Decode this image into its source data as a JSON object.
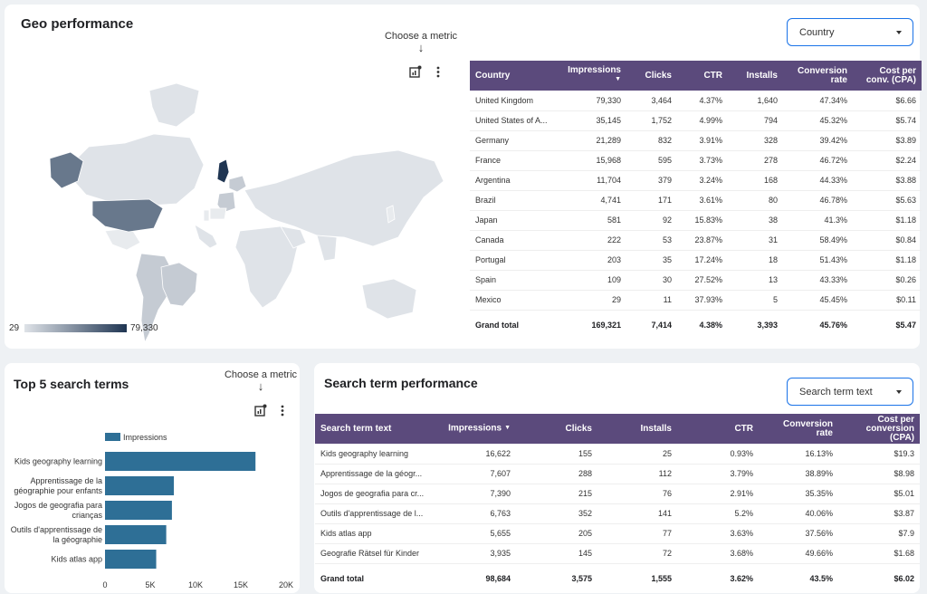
{
  "geo": {
    "title": "Geo performance",
    "choose_metric": "Choose a metric",
    "dropdown_label": "Country",
    "scale_min": "29",
    "scale_max": "79,330",
    "colors": {
      "header": "#5b4a7c",
      "accent": "#1a73e8",
      "map_dark": "#1f3552",
      "map_light": "#dfe3e8"
    },
    "table": {
      "headers": [
        "Country",
        "Impressions",
        "Clicks",
        "CTR",
        "Installs",
        "Conversion rate",
        "Cost per conv. (CPA)"
      ],
      "rows": [
        [
          "United Kingdom",
          "79,330",
          "3,464",
          "4.37%",
          "1,640",
          "47.34%",
          "$6.66"
        ],
        [
          "United States of A...",
          "35,145",
          "1,752",
          "4.99%",
          "794",
          "45.32%",
          "$5.74"
        ],
        [
          "Germany",
          "21,289",
          "832",
          "3.91%",
          "328",
          "39.42%",
          "$3.89"
        ],
        [
          "France",
          "15,968",
          "595",
          "3.73%",
          "278",
          "46.72%",
          "$2.24"
        ],
        [
          "Argentina",
          "11,704",
          "379",
          "3.24%",
          "168",
          "44.33%",
          "$3.88"
        ],
        [
          "Brazil",
          "4,741",
          "171",
          "3.61%",
          "80",
          "46.78%",
          "$5.63"
        ],
        [
          "Japan",
          "581",
          "92",
          "15.83%",
          "38",
          "41.3%",
          "$1.18"
        ],
        [
          "Canada",
          "222",
          "53",
          "23.87%",
          "31",
          "58.49%",
          "$0.84"
        ],
        [
          "Portugal",
          "203",
          "35",
          "17.24%",
          "18",
          "51.43%",
          "$1.18"
        ],
        [
          "Spain",
          "109",
          "30",
          "27.52%",
          "13",
          "43.33%",
          "$0.26"
        ],
        [
          "Mexico",
          "29",
          "11",
          "37.93%",
          "5",
          "45.45%",
          "$0.11"
        ]
      ],
      "total": [
        "Grand total",
        "169,321",
        "7,414",
        "4.38%",
        "3,393",
        "45.76%",
        "$5.47"
      ]
    }
  },
  "top5": {
    "title": "Top 5 search terms",
    "choose_metric": "Choose a metric",
    "chart_data": {
      "type": "bar",
      "orientation": "horizontal",
      "title": "Top 5 search terms",
      "legend": [
        "Impressions"
      ],
      "categories": [
        "Kids geography learning",
        "Apprentissage de la géographie pour enfants",
        "Jogos de geografia para crianças",
        "Outils d'apprentissage de la géographie",
        "Kids atlas app"
      ],
      "category_lines": [
        [
          "Kids geography learning"
        ],
        [
          "Apprentissage de la",
          "géographie pour enfants"
        ],
        [
          "Jogos de geografia para",
          "crianças"
        ],
        [
          "Outils d'apprentissage de",
          "la géographie"
        ],
        [
          "Kids atlas app"
        ]
      ],
      "series": [
        {
          "name": "Impressions",
          "values": [
            16622,
            7607,
            7390,
            6763,
            5655
          ]
        }
      ],
      "xlim": [
        0,
        20000
      ],
      "x_ticks": [
        0,
        5000,
        10000,
        15000,
        20000
      ],
      "x_tick_labels": [
        "0",
        "5K",
        "10K",
        "15K",
        "20K"
      ],
      "bar_color": "#2e6f96"
    }
  },
  "search_terms": {
    "title": "Search term performance",
    "dropdown_label": "Search term text",
    "table": {
      "headers": [
        "Search term text",
        "Impressions",
        "Clicks",
        "Installs",
        "CTR",
        "Conversion rate",
        "Cost per conversion (CPA)"
      ],
      "rows": [
        [
          "Kids geography learning",
          "16,622",
          "155",
          "25",
          "0.93%",
          "16.13%",
          "$19.3"
        ],
        [
          "Apprentissage de la géogr...",
          "7,607",
          "288",
          "112",
          "3.79%",
          "38.89%",
          "$8.98"
        ],
        [
          "Jogos de geografia para cr...",
          "7,390",
          "215",
          "76",
          "2.91%",
          "35.35%",
          "$5.01"
        ],
        [
          "Outils d'apprentissage de l...",
          "6,763",
          "352",
          "141",
          "5.2%",
          "40.06%",
          "$3.87"
        ],
        [
          "Kids atlas app",
          "5,655",
          "205",
          "77",
          "3.63%",
          "37.56%",
          "$7.9"
        ],
        [
          "Geografie Rätsel für Kinder",
          "3,935",
          "145",
          "72",
          "3.68%",
          "49.66%",
          "$1.68"
        ]
      ],
      "total": [
        "Grand total",
        "98,684",
        "3,575",
        "1,555",
        "3.62%",
        "43.5%",
        "$6.02"
      ]
    }
  }
}
